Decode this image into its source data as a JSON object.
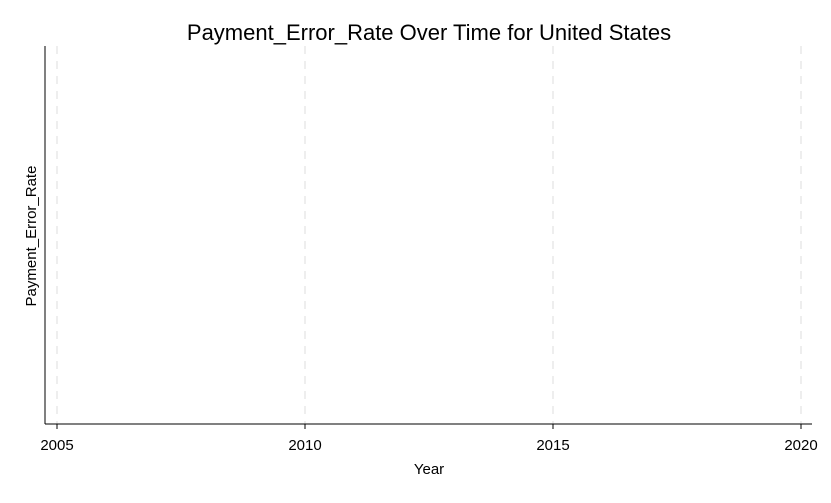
{
  "chart_data": {
    "type": "line",
    "title": "Payment_Error_Rate Over Time for United States",
    "xlabel": "Year",
    "ylabel": "Payment_Error_Rate",
    "xlim": [
      2005,
      2020
    ],
    "xticks": [
      2005,
      2010,
      2015,
      2020
    ],
    "x_tick_labels": [
      "2005",
      "2010",
      "2015",
      "2020"
    ],
    "yticks": [],
    "grid": "x-dashed",
    "legend": "none",
    "series": [
      {
        "x": [],
        "y": []
      }
    ]
  },
  "colors": {
    "background": "#ffffff",
    "axis": "#000000",
    "grid": "#e8e8e8",
    "text": "#000000"
  }
}
